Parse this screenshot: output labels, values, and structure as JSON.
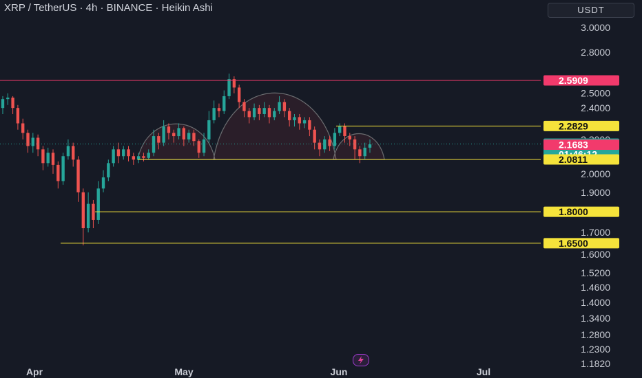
{
  "header": {
    "title": "XRP / TetherUS · 4h · BINANCE · Heikin Ashi",
    "currency": "USDT"
  },
  "colors": {
    "background": "#161a25",
    "up": "#26a69a",
    "down": "#ef5350",
    "support": "#f5e33b",
    "resistance": "#f23a6c"
  },
  "chart_data": {
    "type": "candlestick",
    "ylim": [
      1.18,
      3.1
    ],
    "y_scale": "log",
    "yticks": [
      "3.0000",
      "2.8000",
      "2.5000",
      "2.4000",
      "2.2000",
      "2.0000",
      "1.9000",
      "1.7000",
      "1.6000",
      "1.5200",
      "1.4600",
      "1.4000",
      "1.3400",
      "1.2800",
      "1.2300",
      "1.1820"
    ],
    "xticks": [
      "Apr",
      "May",
      "Jun",
      "Jul"
    ],
    "price_tags": [
      {
        "label": "2.5909",
        "value": 2.5909,
        "kind": "resistance"
      },
      {
        "label": "2.2829",
        "value": 2.2829,
        "kind": "support"
      },
      {
        "label": "2.1723",
        "value": 2.1723,
        "kind": "last",
        "countdown": "01:46:12"
      },
      {
        "label": "2.1683",
        "value": 2.1683,
        "kind": "down"
      },
      {
        "label": "2.0811",
        "value": 2.0811,
        "kind": "support"
      },
      {
        "label": "1.8000",
        "value": 1.8,
        "kind": "support"
      },
      {
        "label": "1.6500",
        "value": 1.65,
        "kind": "support"
      }
    ],
    "series": [
      {
        "candles": [
          [
            2.4,
            2.46,
            2.48,
            2.36
          ],
          [
            2.46,
            2.47,
            2.5,
            2.42
          ],
          [
            2.47,
            2.4,
            2.48,
            2.36
          ],
          [
            2.4,
            2.3,
            2.42,
            2.26
          ],
          [
            2.3,
            2.24,
            2.33,
            2.2
          ],
          [
            2.24,
            2.16,
            2.26,
            2.12
          ],
          [
            2.16,
            2.21,
            2.24,
            2.12
          ],
          [
            2.21,
            2.14,
            2.23,
            2.1
          ],
          [
            2.14,
            2.06,
            2.16,
            2.02
          ],
          [
            2.06,
            2.12,
            2.15,
            2.04
          ],
          [
            2.12,
            2.05,
            2.14,
            2.0
          ],
          [
            2.05,
            1.96,
            2.07,
            1.92
          ],
          [
            1.96,
            2.1,
            2.12,
            1.94
          ],
          [
            2.1,
            2.16,
            2.2,
            2.08
          ],
          [
            2.16,
            2.08,
            2.18,
            2.04
          ],
          [
            2.08,
            1.9,
            2.1,
            1.85
          ],
          [
            1.9,
            1.72,
            1.92,
            1.64
          ],
          [
            1.72,
            1.84,
            1.9,
            1.7
          ],
          [
            1.84,
            1.76,
            1.86,
            1.72
          ],
          [
            1.76,
            1.92,
            1.96,
            1.74
          ],
          [
            1.92,
            1.98,
            2.02,
            1.9
          ],
          [
            1.98,
            2.06,
            2.08,
            1.96
          ],
          [
            2.06,
            2.14,
            2.16,
            2.04
          ],
          [
            2.14,
            2.1,
            2.18,
            2.06
          ],
          [
            2.1,
            2.14,
            2.16,
            2.08
          ],
          [
            2.14,
            2.1,
            2.16,
            2.07
          ],
          [
            2.1,
            2.08,
            2.12,
            2.05
          ],
          [
            2.08,
            2.1,
            2.12,
            2.06
          ],
          [
            2.1,
            2.09,
            2.12,
            2.07
          ],
          [
            2.09,
            2.12,
            2.14,
            2.08
          ],
          [
            2.12,
            2.22,
            2.26,
            2.1
          ],
          [
            2.22,
            2.18,
            2.24,
            2.14
          ],
          [
            2.18,
            2.28,
            2.32,
            2.16
          ],
          [
            2.28,
            2.24,
            2.3,
            2.2
          ],
          [
            2.24,
            2.22,
            2.26,
            2.18
          ],
          [
            2.22,
            2.27,
            2.3,
            2.2
          ],
          [
            2.27,
            2.2,
            2.28,
            2.16
          ],
          [
            2.2,
            2.24,
            2.26,
            2.18
          ],
          [
            2.24,
            2.19,
            2.26,
            2.16
          ],
          [
            2.19,
            2.12,
            2.2,
            2.09
          ],
          [
            2.12,
            2.2,
            2.24,
            2.1
          ],
          [
            2.2,
            2.32,
            2.38,
            2.18
          ],
          [
            2.32,
            2.4,
            2.45,
            2.3
          ],
          [
            2.4,
            2.38,
            2.43,
            2.34
          ],
          [
            2.38,
            2.48,
            2.52,
            2.36
          ],
          [
            2.48,
            2.6,
            2.64,
            2.46
          ],
          [
            2.6,
            2.54,
            2.62,
            2.5
          ],
          [
            2.54,
            2.44,
            2.56,
            2.4
          ],
          [
            2.44,
            2.38,
            2.46,
            2.34
          ],
          [
            2.38,
            2.34,
            2.4,
            2.3
          ],
          [
            2.34,
            2.4,
            2.43,
            2.32
          ],
          [
            2.4,
            2.36,
            2.42,
            2.32
          ],
          [
            2.36,
            2.4,
            2.44,
            2.34
          ],
          [
            2.4,
            2.34,
            2.42,
            2.3
          ],
          [
            2.34,
            2.38,
            2.4,
            2.32
          ],
          [
            2.38,
            2.44,
            2.48,
            2.36
          ],
          [
            2.44,
            2.38,
            2.46,
            2.34
          ],
          [
            2.38,
            2.32,
            2.4,
            2.28
          ],
          [
            2.32,
            2.34,
            2.36,
            2.28
          ],
          [
            2.34,
            2.3,
            2.36,
            2.26
          ],
          [
            2.3,
            2.32,
            2.34,
            2.27
          ],
          [
            2.32,
            2.26,
            2.34,
            2.22
          ],
          [
            2.26,
            2.18,
            2.28,
            2.14
          ],
          [
            2.18,
            2.14,
            2.2,
            2.1
          ],
          [
            2.14,
            2.2,
            2.22,
            2.12
          ],
          [
            2.2,
            2.16,
            2.22,
            2.13
          ],
          [
            2.16,
            2.24,
            2.27,
            2.14
          ],
          [
            2.24,
            2.28,
            2.3,
            2.22
          ],
          [
            2.28,
            2.22,
            2.3,
            2.18
          ],
          [
            2.22,
            2.2,
            2.24,
            2.16
          ],
          [
            2.2,
            2.14,
            2.22,
            2.08
          ],
          [
            2.14,
            2.1,
            2.16,
            2.06
          ],
          [
            2.1,
            2.15,
            2.18,
            2.08
          ],
          [
            2.15,
            2.17,
            2.2,
            2.12
          ]
        ]
      }
    ]
  }
}
